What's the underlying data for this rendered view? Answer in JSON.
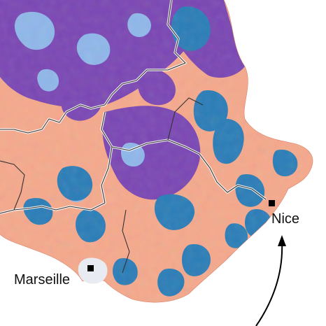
{
  "map": {
    "colors": {
      "sea": "#ffffff",
      "salmon": "#f6a98c",
      "purple": "#7a46b4",
      "teal_blue": "#2a7db8",
      "light_blue": "#8fb7ea",
      "boundary": "#333333",
      "boundary_halo": "#ffffff"
    },
    "cities": [
      {
        "id": "marseille",
        "name": "Marseille"
      },
      {
        "id": "nice",
        "name": "Nice"
      }
    ],
    "annotation_arrow": {
      "points_to": "nice",
      "icon": "curved-arrow-icon"
    }
  }
}
